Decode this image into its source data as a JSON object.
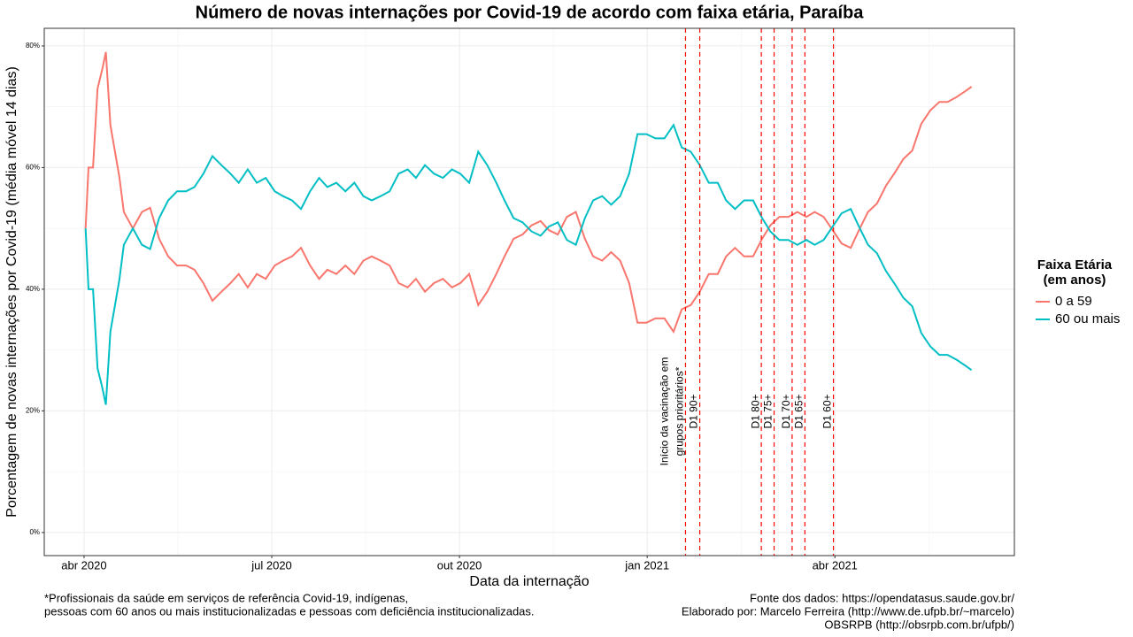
{
  "chart_data": {
    "type": "line",
    "title": "Número de novas internações por Covid-19 de acordo com faixa etária, Paraíba",
    "x_label": "Data da internação",
    "y_label": "Porcentagem de novas internações por Covid-19 (média móvel 14 dias)",
    "xlim": [
      2020.197,
      2021.489
    ],
    "ylim": [
      -3.8,
      82.9
    ],
    "xticks": [
      {
        "value": 2020.25,
        "label": "abr 2020"
      },
      {
        "value": 2020.5,
        "label": "jul 2020"
      },
      {
        "value": 2020.75,
        "label": "out 2020"
      },
      {
        "value": 2021.0,
        "label": "jan 2021"
      },
      {
        "value": 2021.25,
        "label": "abr 2021"
      }
    ],
    "yticks": [
      {
        "value": 0,
        "label": "0%"
      },
      {
        "value": 20,
        "label": "20%"
      },
      {
        "value": 40,
        "label": "40%"
      },
      {
        "value": 60,
        "label": "60%"
      },
      {
        "value": 80,
        "label": "80%"
      }
    ],
    "grid": true,
    "legend_title": [
      "Faixa Etária",
      "(em anos)"
    ],
    "legend_position": "right",
    "x": [
      2020.252,
      2020.256,
      2020.262,
      2020.268,
      2020.274,
      2020.279,
      2020.285,
      2020.297,
      2020.303,
      2020.315,
      2020.327,
      2020.338,
      2020.35,
      2020.362,
      2020.374,
      2020.386,
      2020.397,
      2020.409,
      2020.421,
      2020.433,
      2020.445,
      2020.456,
      2020.468,
      2020.48,
      2020.492,
      2020.504,
      2020.515,
      2020.527,
      2020.539,
      2020.551,
      2020.563,
      2020.574,
      2020.586,
      2020.598,
      2020.61,
      2020.622,
      2020.633,
      2020.645,
      2020.657,
      2020.669,
      2020.681,
      2020.692,
      2020.704,
      2020.716,
      2020.728,
      2020.74,
      2020.751,
      2020.763,
      2020.775,
      2020.787,
      2020.799,
      2020.81,
      2020.822,
      2020.834,
      2020.846,
      2020.858,
      2020.869,
      2020.881,
      2020.893,
      2020.905,
      2020.917,
      2020.928,
      2020.94,
      2020.952,
      2020.964,
      2020.976,
      2020.987,
      2020.999,
      2021.011,
      2021.023,
      2021.035,
      2021.046,
      2021.058,
      2021.07,
      2021.082,
      2021.094,
      2021.105,
      2021.117,
      2021.129,
      2021.141,
      2021.153,
      2021.164,
      2021.176,
      2021.188,
      2021.2,
      2021.212,
      2021.223,
      2021.235,
      2021.247,
      2021.259,
      2021.271,
      2021.282,
      2021.294,
      2021.306,
      2021.318,
      2021.33,
      2021.341,
      2021.353,
      2021.365,
      2021.377,
      2021.389,
      2021.4,
      2021.412,
      2021.424,
      2021.432
    ],
    "series": [
      {
        "name": "0 a 59",
        "color": "#F8766D",
        "values": [
          50,
          60,
          60,
          73,
          76,
          79,
          67,
          58.5,
          52.7,
          50,
          52.7,
          53.4,
          48.3,
          45.4,
          43.9,
          43.9,
          43.2,
          41,
          38.1,
          39.6,
          41,
          42.5,
          40.3,
          42.5,
          41.7,
          43.9,
          44.7,
          45.4,
          46.8,
          43.9,
          41.7,
          43.2,
          42.5,
          43.9,
          42.5,
          44.7,
          45.4,
          44.7,
          43.9,
          41,
          40.3,
          41.7,
          39.6,
          41,
          41.7,
          40.3,
          41,
          42.5,
          37.4,
          39.6,
          42.5,
          45.4,
          48.3,
          49,
          50.5,
          51.2,
          49.7,
          49,
          51.9,
          52.7,
          48.3,
          45.4,
          44.7,
          46.1,
          44.7,
          41,
          34.5,
          34.5,
          35.2,
          35.2,
          33,
          36.7,
          37.4,
          39.6,
          42.5,
          42.5,
          45.4,
          46.8,
          45.4,
          45.4,
          48.3,
          50.5,
          51.9,
          51.9,
          52.7,
          51.9,
          52.7,
          51.9,
          49.7,
          47.5,
          46.8,
          49.7,
          52.7,
          54.1,
          57,
          59.2,
          61.4,
          62.8,
          67.2,
          69.4,
          70.8,
          70.8,
          71.6,
          72.6,
          73.3
        ]
      },
      {
        "name": "60 ou mais",
        "color": "#00BFC4",
        "values": [
          50,
          40,
          40,
          27,
          24,
          21,
          33,
          41.5,
          47.3,
          50,
          47.3,
          46.6,
          51.7,
          54.6,
          56.1,
          56.1,
          56.8,
          59,
          61.9,
          60.4,
          59,
          57.5,
          59.7,
          57.5,
          58.3,
          56.1,
          55.3,
          54.6,
          53.2,
          56.1,
          58.3,
          56.8,
          57.5,
          56.1,
          57.5,
          55.3,
          54.6,
          55.3,
          56.1,
          59,
          59.7,
          58.3,
          60.4,
          59,
          58.3,
          59.7,
          59,
          57.5,
          62.6,
          60.4,
          57.5,
          54.6,
          51.7,
          51,
          49.5,
          48.8,
          50.3,
          51,
          48.1,
          47.3,
          51.7,
          54.6,
          55.3,
          53.9,
          55.3,
          59,
          65.5,
          65.5,
          64.8,
          64.8,
          67,
          63.3,
          62.6,
          60.4,
          57.5,
          57.5,
          54.6,
          53.2,
          54.6,
          54.6,
          51.7,
          49.5,
          48.1,
          48.1,
          47.3,
          48.1,
          47.3,
          48.1,
          50.3,
          52.5,
          53.2,
          50.3,
          47.3,
          45.9,
          43,
          40.8,
          38.6,
          37.2,
          32.8,
          30.6,
          29.2,
          29.2,
          28.4,
          27.4,
          26.7
        ]
      }
    ],
    "annotations": [
      {
        "x": 2021.051,
        "lines": [
          "Início da vacinação em",
          "grupos prioritários*"
        ]
      },
      {
        "x": 2021.07,
        "lines": [
          "D1 90+"
        ]
      },
      {
        "x": 2021.152,
        "lines": [
          "D1 80+"
        ]
      },
      {
        "x": 2021.169,
        "lines": [
          "D1 75+"
        ]
      },
      {
        "x": 2021.193,
        "lines": [
          "D1 70+"
        ]
      },
      {
        "x": 2021.21,
        "lines": [
          "D1 65+"
        ]
      },
      {
        "x": 2021.248,
        "lines": [
          "D1 60+"
        ]
      }
    ],
    "annotation_color": "#FF0000",
    "caption_left": [
      "*Profissionais da saúde em serviços de referência Covid-19, indígenas,",
      "pessoas com 60 anos ou mais institucionalizadas e pessoas com deficiência institucionalizadas."
    ],
    "caption_right": [
      "Fonte dos dados: https://opendatasus.saude.gov.br/",
      "Elaborado por: Marcelo Ferreira (http://www.de.ufpb.br/~marcelo)",
      "OBSRPB (http://obsrpb.com.br/ufpb/)"
    ]
  }
}
